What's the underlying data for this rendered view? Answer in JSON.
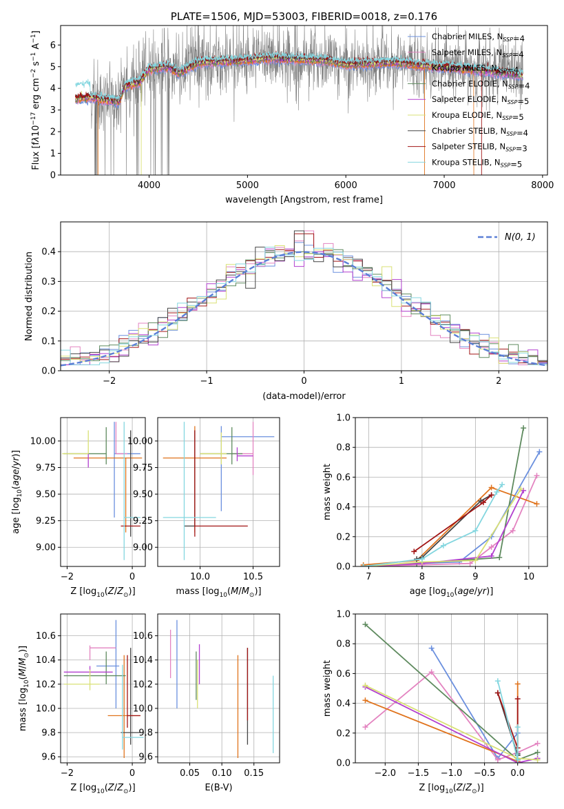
{
  "palette": [
    "#6a8fde",
    "#e383c0",
    "#e0731c",
    "#5e8a5e",
    "#b23fcf",
    "#d9e074",
    "#444444",
    "#a11414",
    "#83d6df"
  ],
  "hist_colors": [
    "#6a8fde",
    "#e383c0",
    "#a11414",
    "#5e8a5e",
    "#b23fcf",
    "#d9e074",
    "#444444",
    "#83d6df"
  ],
  "gaussian_color": "#5b7fd6",
  "spectrum_color": "#808080",
  "legend_labels": [
    "Chabrier MILES, N<sub>SSP</sub>=4",
    "Salpeter MILES, N<sub>SSP</sub>=4",
    "Kroupa MILES, N<sub>SSP</sub>=4",
    "Chabrier ELODIE, N<sub>SSP</sub>=4",
    "Salpeter ELODIE, N<sub>SSP</sub>=5",
    "Kroupa ELODIE, N<sub>SSP</sub>=5",
    "Chabrier STELIB, N<sub>SSP</sub>=4",
    "Salpeter STELIB, N<sub>SSP</sub>=3",
    "Kroupa STELIB, N<sub>SSP</sub>=5"
  ],
  "chart_data": [
    {
      "type": "line",
      "title": "PLATE=1506, MJD=53003, FIBERID=0018, z=0.176",
      "xlabel": "wavelength [Angstrom, rest frame]",
      "ylabel": "Flux [f<tspan font-style='italic'>λ</tspan>10<tspan dy='-5' font-size='9'>−17</tspan><tspan dy='5'> erg cm</tspan><tspan dy='-5' font-size='9'>−2</tspan><tspan dy='5'> s</tspan><tspan dy='-5' font-size='9'>−1</tspan><tspan dy='5'> A</tspan><tspan dy='-5' font-size='9'>−1</tspan><tspan dy='5'>]</tspan>",
      "xlim": [
        3100,
        8050
      ],
      "ylim": [
        0,
        6.9
      ],
      "xticks": [
        4000,
        5000,
        6000,
        7000,
        8000
      ],
      "yticks": [
        0,
        1,
        2,
        3,
        4,
        5,
        6
      ],
      "legend": "top-right",
      "data_range": [
        3400,
        7800
      ],
      "model_range": [
        3250,
        7800
      ],
      "continuum_x": [
        3250,
        3400,
        3500,
        3700,
        3750,
        3900,
        4000,
        4200,
        4300,
        4500,
        5000,
        5200,
        5800,
        6000,
        6500,
        6800,
        7100,
        7800
      ],
      "continuum_y": [
        3.5,
        3.6,
        3.5,
        3.4,
        4.1,
        4.3,
        4.9,
        5.0,
        4.7,
        5.2,
        5.3,
        5.4,
        5.3,
        5.1,
        5.2,
        5.05,
        4.95,
        4.6
      ]
    },
    {
      "type": "histogram",
      "xlabel": "(data-model)/error",
      "ylabel": "Normed distribution",
      "xlim": [
        -2.5,
        2.5
      ],
      "ylim": [
        0,
        0.5
      ],
      "xticks": [
        -2,
        -1,
        0,
        1,
        2
      ],
      "yticks": [
        0.0,
        0.1,
        0.2,
        0.3,
        0.4
      ],
      "legend": "top-right",
      "gaussian_label": "N(0, 1)",
      "bin_edges_start": -2.5,
      "bin_width": 0.1
    },
    {
      "type": "scatter",
      "xlabel": "Z [log10(Z/Z⊙)]",
      "ylabel": "age  [log10(age/yr)]",
      "xlim": [
        -2.2,
        0.4
      ],
      "ylim": [
        8.82,
        10.22
      ],
      "xticks": [
        -2,
        0
      ],
      "yticks": [
        9.0,
        9.25,
        9.5,
        9.75,
        10.0
      ],
      "points": [
        {
          "x": -0.55,
          "y": 9.88,
          "xerr": [
            0.0,
            0.8
          ],
          "yerr": [
            0.6,
            0.3
          ]
        },
        {
          "x": -0.5,
          "y": 9.88,
          "xerr": [
            0.0,
            0.35
          ],
          "yerr": [
            0.0,
            0.3
          ]
        },
        {
          "x": -0.2,
          "y": 9.84,
          "xerr": [
            1.6,
            0.5
          ],
          "yerr": [
            0.7,
            0.0
          ]
        },
        {
          "x": -0.8,
          "y": 9.88,
          "xerr": [
            1.3,
            0.0
          ],
          "yerr": [
            0.1,
            0.25
          ]
        },
        {
          "x": -1.35,
          "y": 9.8,
          "xerr": [
            0.0,
            0.0
          ],
          "yerr": [
            0.05,
            0.08
          ]
        },
        {
          "x": -1.35,
          "y": 9.88,
          "xerr": [
            0.8,
            0.0
          ],
          "yerr": [
            0.0,
            0.22
          ]
        },
        {
          "x": -0.05,
          "y": 9.2,
          "xerr": [
            0.0,
            0.0
          ],
          "yerr": [
            0.1,
            0.9
          ]
        },
        {
          "x": -0.05,
          "y": 9.2,
          "xerr": [
            0.3,
            0.3
          ],
          "yerr": [
            0.0,
            0.0
          ]
        },
        {
          "x": -0.25,
          "y": 9.28,
          "xerr": [
            0.0,
            0.5
          ],
          "yerr": [
            0.4,
            0.9
          ]
        }
      ]
    },
    {
      "type": "scatter",
      "xlabel": "mass [log10(M/M⊙)]",
      "ylabel": "",
      "xlim": [
        9.6,
        10.75
      ],
      "ylim": [
        8.82,
        10.22
      ],
      "xticks": [
        10.0,
        10.5
      ],
      "yticks": [
        9.0,
        9.25,
        9.5,
        9.75,
        10.0
      ],
      "points": [
        {
          "x": 10.2,
          "y": 10.04,
          "xerr": [
            0.0,
            0.5
          ],
          "yerr": [
            0.7,
            0.1
          ]
        },
        {
          "x": 10.5,
          "y": 9.88,
          "xerr": [
            0.2,
            0.0
          ],
          "yerr": [
            0.2,
            0.3
          ]
        },
        {
          "x": 9.95,
          "y": 9.84,
          "xerr": [
            0.3,
            0.3
          ],
          "yerr": [
            0.7,
            0.3
          ]
        },
        {
          "x": 10.3,
          "y": 9.88,
          "xerr": [
            0.3,
            0.1
          ],
          "yerr": [
            0.1,
            0.25
          ]
        },
        {
          "x": 10.35,
          "y": 9.86,
          "xerr": [
            0.0,
            0.15
          ],
          "yerr": [
            0.05,
            0.08
          ]
        },
        {
          "x": 10.2,
          "y": 9.88,
          "xerr": [
            0.2,
            0.05
          ],
          "yerr": [
            0.1,
            0.2
          ]
        },
        {
          "x": 9.95,
          "y": 9.2,
          "xerr": [
            0.1,
            0.0
          ],
          "yerr": [
            0.0,
            0.9
          ]
        },
        {
          "x": 9.95,
          "y": 9.2,
          "xerr": [
            0.0,
            0.5
          ],
          "yerr": [
            0.1,
            0.9
          ]
        },
        {
          "x": 9.85,
          "y": 9.28,
          "xerr": [
            0.2,
            0.3
          ],
          "yerr": [
            0.4,
            0.9
          ]
        }
      ]
    },
    {
      "type": "line",
      "xlabel": "age  [log10(age/yr)]",
      "ylabel": "mass weight",
      "xlim": [
        6.75,
        10.35
      ],
      "ylim": [
        0,
        1.0
      ],
      "xticks": [
        7,
        8,
        9,
        10
      ],
      "yticks": [
        0.0,
        0.2,
        0.4,
        0.6,
        0.8,
        1.0
      ],
      "series": [
        {
          "x": [
            6.9,
            7.9,
            8.7,
            9.3,
            10.2
          ],
          "y": [
            0.0,
            0.02,
            0.03,
            0.2,
            0.77
          ]
        },
        {
          "x": [
            6.9,
            8.9,
            9.3,
            9.7,
            10.15
          ],
          "y": [
            0.0,
            0.02,
            0.13,
            0.24,
            0.61
          ]
        },
        {
          "x": [
            6.9,
            7.9,
            9.3,
            10.15
          ],
          "y": [
            0.01,
            0.04,
            0.53,
            0.42
          ]
        },
        {
          "x": [
            6.9,
            7.9,
            9.45,
            9.9
          ],
          "y": [
            0.0,
            0.02,
            0.06,
            0.93
          ]
        },
        {
          "x": [
            6.9,
            8.0,
            9.3,
            9.9
          ],
          "y": [
            0.0,
            0.02,
            0.07,
            0.51
          ]
        },
        {
          "x": [
            6.9,
            8.0,
            9.0,
            9.85
          ],
          "y": [
            0.0,
            0.03,
            0.04,
            0.52
          ]
        },
        {
          "x": [
            7.9,
            8.0,
            9.1,
            9.3
          ],
          "y": [
            0.05,
            0.06,
            0.44,
            0.48
          ]
        },
        {
          "x": [
            7.85,
            9.15,
            9.3
          ],
          "y": [
            0.1,
            0.43,
            0.48
          ]
        },
        {
          "x": [
            6.9,
            8.0,
            8.4,
            9.0,
            9.4,
            9.5
          ],
          "y": [
            0.0,
            0.05,
            0.14,
            0.24,
            0.5,
            0.55
          ]
        }
      ]
    },
    {
      "type": "scatter",
      "xlabel": "Z [log10(Z/Z⊙)]",
      "ylabel": "mass [log10(M/M⊙)]",
      "xlim": [
        -2.2,
        0.4
      ],
      "ylim": [
        9.55,
        10.78
      ],
      "xticks": [
        -2,
        0
      ],
      "yticks": [
        9.6,
        9.8,
        10.0,
        10.2,
        10.4,
        10.6
      ],
      "points": [
        {
          "x": -0.5,
          "y": 10.35,
          "xerr": [
            0.6,
            0.1
          ],
          "yerr": [
            0.35,
            0.38
          ]
        },
        {
          "x": -1.3,
          "y": 10.5,
          "xerr": [
            0.0,
            0.8
          ],
          "yerr": [
            0.1,
            0.02
          ]
        },
        {
          "x": -0.25,
          "y": 9.94,
          "xerr": [
            0.5,
            0.5
          ],
          "yerr": [
            0.35,
            0.5
          ]
        },
        {
          "x": -0.8,
          "y": 10.27,
          "xerr": [
            1.3,
            0.6
          ],
          "yerr": [
            0.07,
            0.2
          ]
        },
        {
          "x": -1.3,
          "y": 10.3,
          "xerr": [
            0.8,
            0.7
          ],
          "yerr": [
            0.02,
            0.05
          ]
        },
        {
          "x": -1.3,
          "y": 10.2,
          "xerr": [
            0.8,
            0.3
          ],
          "yerr": [
            0.05,
            0.12
          ]
        },
        {
          "x": -0.05,
          "y": 9.8,
          "xerr": [
            0.3,
            0.3
          ],
          "yerr": [
            0.1,
            0.7
          ]
        },
        {
          "x": -0.15,
          "y": 9.94,
          "xerr": [
            0.0,
            0.4
          ],
          "yerr": [
            0.1,
            0.5
          ]
        },
        {
          "x": -0.3,
          "y": 9.76,
          "xerr": [
            0.0,
            0.65
          ],
          "yerr": [
            0.1,
            0.6
          ]
        }
      ]
    },
    {
      "type": "scatter",
      "xlabel": "E(B-V)",
      "ylabel": "",
      "xlim": [
        0.0,
        0.19
      ],
      "ylim": [
        9.55,
        10.78
      ],
      "xticks": [
        0.05,
        0.1,
        0.15
      ],
      "yticks": [
        9.6,
        9.8,
        10.0,
        10.2,
        10.4,
        10.6
      ],
      "points": [
        {
          "x": 0.03,
          "y": 10.35,
          "xerr": [
            0,
            0
          ],
          "yerr": [
            0.35,
            0.38
          ]
        },
        {
          "x": 0.02,
          "y": 10.45,
          "xerr": [
            0,
            0
          ],
          "yerr": [
            0.2,
            0.2
          ]
        },
        {
          "x": 0.125,
          "y": 9.94,
          "xerr": [
            0,
            0
          ],
          "yerr": [
            0.35,
            0.5
          ]
        },
        {
          "x": 0.06,
          "y": 10.27,
          "xerr": [
            0,
            0
          ],
          "yerr": [
            0.2,
            0.2
          ]
        },
        {
          "x": 0.065,
          "y": 10.35,
          "xerr": [
            0,
            0
          ],
          "yerr": [
            0.15,
            0.18
          ]
        },
        {
          "x": 0.062,
          "y": 10.2,
          "xerr": [
            0,
            0
          ],
          "yerr": [
            0.2,
            0.2
          ]
        },
        {
          "x": 0.14,
          "y": 9.8,
          "xerr": [
            0,
            0
          ],
          "yerr": [
            0.1,
            0.7
          ]
        },
        {
          "x": 0.14,
          "y": 10.1,
          "xerr": [
            0,
            0
          ],
          "yerr": [
            0.2,
            0.4
          ]
        },
        {
          "x": 0.18,
          "y": 9.95,
          "xerr": [
            0,
            0
          ],
          "yerr": [
            0.32,
            0.32
          ]
        }
      ]
    },
    {
      "type": "line",
      "xlabel": "Z [log10(Z/Z⊙)]",
      "ylabel": "mass weight",
      "xlim": [
        -2.45,
        0.45
      ],
      "ylim": [
        0,
        1.0
      ],
      "xticks": [
        -2.0,
        -1.5,
        -1.0,
        -0.5,
        0.0
      ],
      "yticks": [
        0.0,
        0.2,
        0.4,
        0.6,
        0.8,
        1.0
      ],
      "series": [
        {
          "x": [
            -1.3,
            -0.3,
            0.0
          ],
          "y": [
            0.77,
            0.03,
            0.2
          ]
        },
        {
          "x": [
            -2.3,
            -1.3,
            -0.3,
            0.0,
            0.3
          ],
          "y": [
            0.24,
            0.61,
            0.02,
            0.07,
            0.13
          ]
        },
        {
          "x": [
            -2.3,
            0.0,
            0.0
          ],
          "y": [
            0.42,
            0.01,
            0.53
          ]
        },
        {
          "x": [
            -2.3,
            0.0,
            0.3
          ],
          "y": [
            0.93,
            0.02,
            0.07
          ]
        },
        {
          "x": [
            -2.3,
            0.0,
            0.3
          ],
          "y": [
            0.51,
            0.0,
            0.03
          ]
        },
        {
          "x": [
            -2.3,
            0.0,
            0.3
          ],
          "y": [
            0.52,
            0.03,
            0.02
          ]
        },
        {
          "x": [
            -0.3,
            0.0,
            0.0
          ],
          "y": [
            0.47,
            0.05,
            0.06
          ]
        },
        {
          "x": [
            -0.3,
            0.0,
            0.0
          ],
          "y": [
            0.47,
            0.1,
            0.43
          ]
        },
        {
          "x": [
            -0.3,
            0.0,
            0.0
          ],
          "y": [
            0.55,
            0.02,
            0.24
          ]
        }
      ]
    }
  ]
}
